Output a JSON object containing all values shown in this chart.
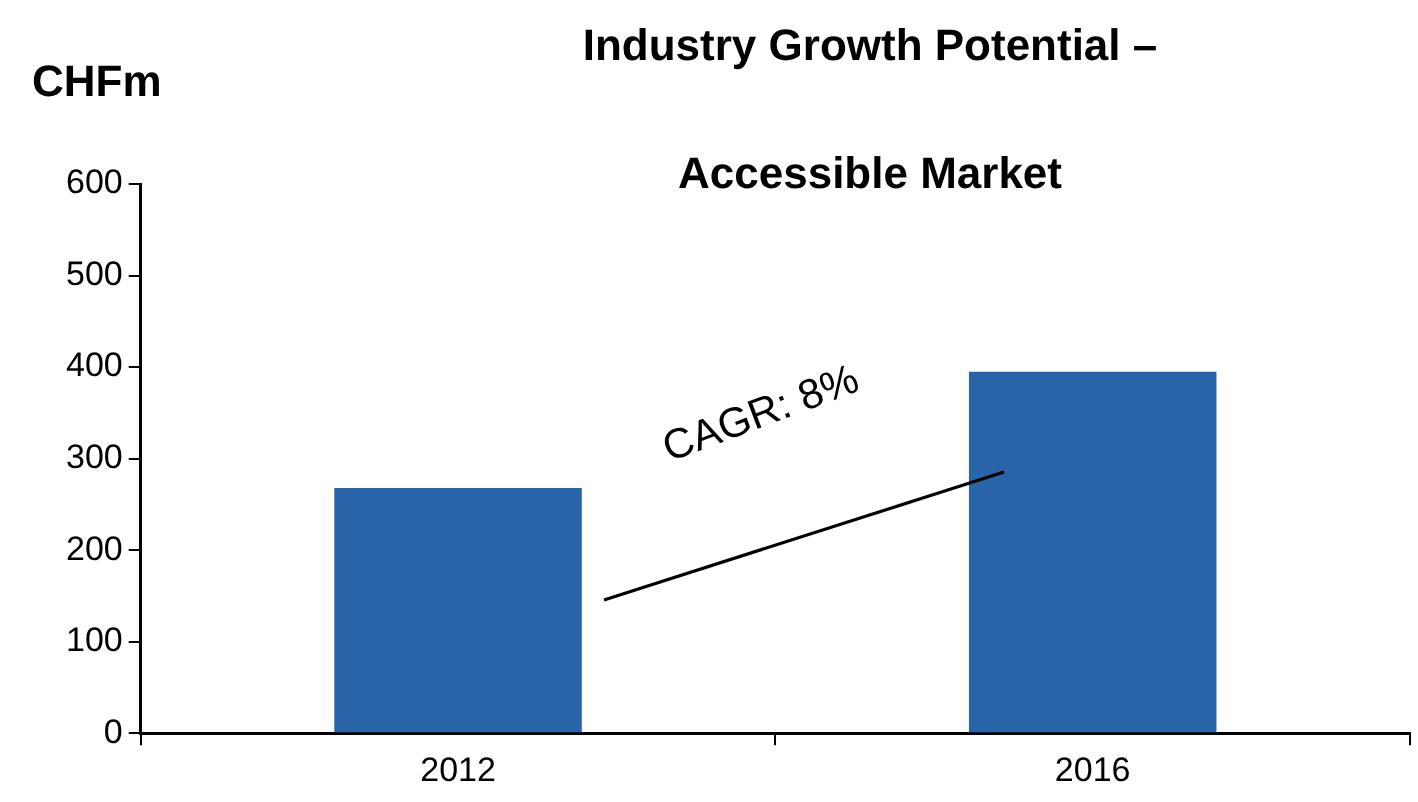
{
  "chart_data": {
    "type": "bar",
    "title": "Industry Growth Potential –\n\nAccessible Market",
    "ylabel": "CHFm",
    "categories": [
      "2012",
      "2016"
    ],
    "values": [
      268,
      395
    ],
    "color": "#2964a8",
    "ylim": [
      0,
      600
    ],
    "yticks": [
      0,
      100,
      200,
      300,
      400,
      500,
      600
    ],
    "grid": false,
    "legend": false,
    "annotations": [
      "CAGR: 8%"
    ]
  }
}
